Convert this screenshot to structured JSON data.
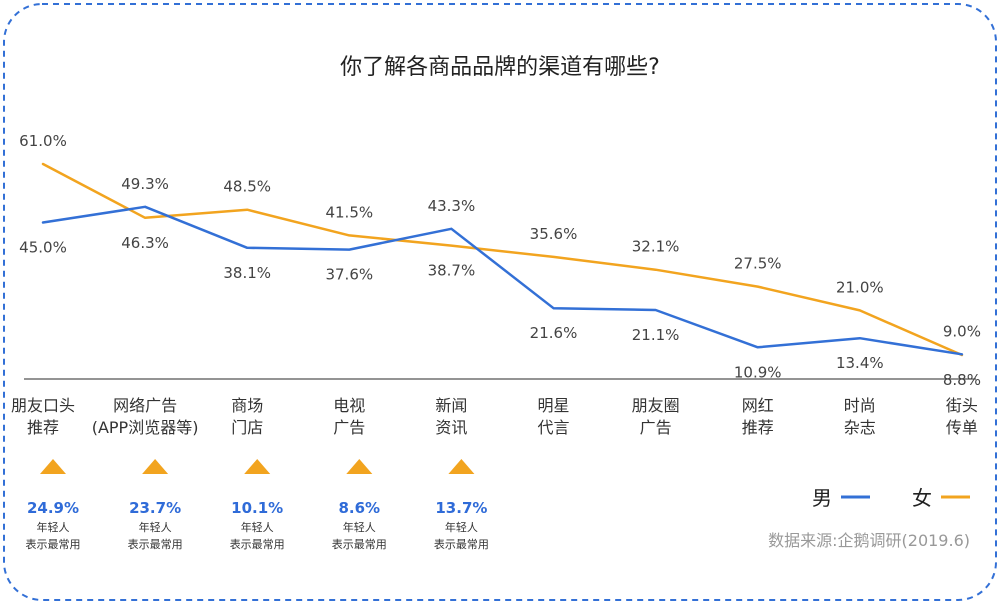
{
  "chart_data": {
    "type": "line",
    "title": "你了解各商品品牌的渠道有哪些?",
    "categories": [
      [
        "朋友口头",
        "推荐"
      ],
      [
        "网络广告",
        "(APP浏览器等)"
      ],
      [
        "商场",
        "门店"
      ],
      [
        "电视",
        "广告"
      ],
      [
        "新闻",
        "资讯"
      ],
      [
        "明星",
        "代言"
      ],
      [
        "朋友圈",
        "广告"
      ],
      [
        "网红",
        "推荐"
      ],
      [
        "时尚",
        "杂志"
      ],
      [
        "街头",
        "传单"
      ]
    ],
    "series": [
      {
        "name": "男",
        "color": "#3370d6",
        "values": [
          45.0,
          49.3,
          38.1,
          37.6,
          43.3,
          21.6,
          21.1,
          10.9,
          13.4,
          9.0
        ],
        "labels": [
          "45.0%",
          "49.3%",
          "38.1%",
          "37.6%",
          "43.3%",
          "21.6%",
          "21.1%",
          "10.9%",
          "13.4%",
          "9.0%"
        ]
      },
      {
        "name": "女",
        "color": "#f2a41f",
        "values": [
          61.0,
          46.3,
          48.5,
          41.5,
          38.7,
          35.6,
          32.1,
          27.5,
          21.0,
          8.8
        ],
        "labels": [
          "61.0%",
          "46.3%",
          "48.5%",
          "41.5%",
          "38.7%",
          "35.6%",
          "32.1%",
          "27.5%",
          "21.0%",
          "8.8%"
        ]
      }
    ],
    "ylim": [
      0,
      70
    ],
    "legend_position": "bottom-right",
    "youth_stats": [
      {
        "value": "24.9%",
        "line1": "年轻人",
        "line2": "表示最常用"
      },
      {
        "value": "23.7%",
        "line1": "年轻人",
        "line2": "表示最常用"
      },
      {
        "value": "10.1%",
        "line1": "年轻人",
        "line2": "表示最常用"
      },
      {
        "value": "8.6%",
        "line1": "年轻人",
        "line2": "表示最常用"
      },
      {
        "value": "13.7%",
        "line1": "年轻人",
        "line2": "表示最常用"
      }
    ],
    "source": "数据来源:企鹅调研(2019.6)",
    "marker_color": "#f2a41f",
    "accent_color": "#2f6bd8",
    "border_color": "#3370d6"
  }
}
